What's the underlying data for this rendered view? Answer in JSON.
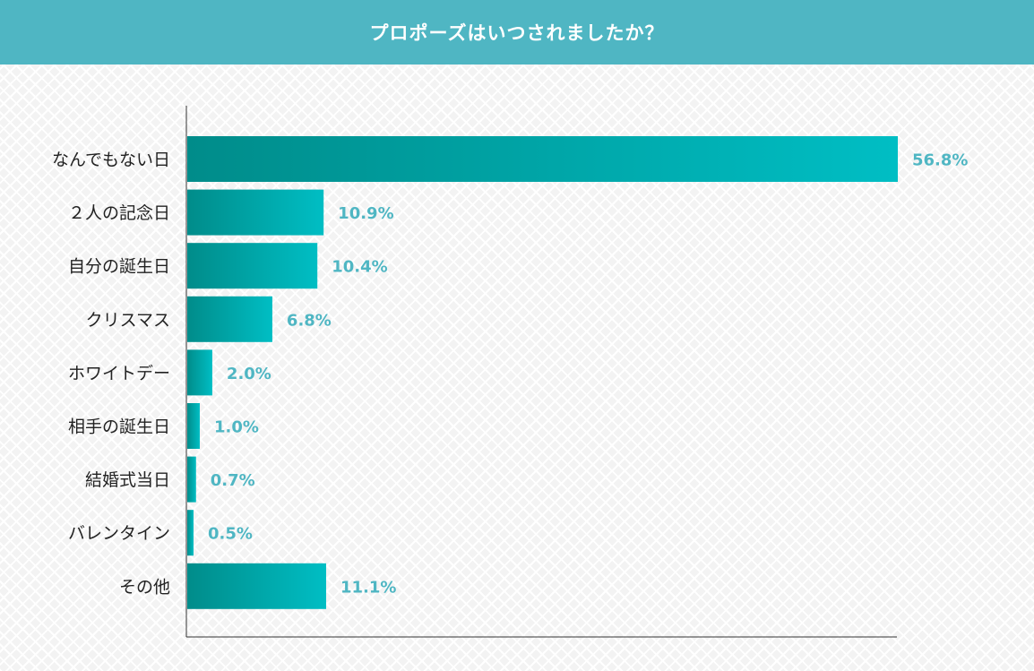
{
  "title": "プロポーズはいつされましたか？",
  "colors": {
    "header": "#4fb6c3",
    "bar_start": "#008c8a",
    "bar_end": "#00bec4",
    "value_label": "#4fb6c3"
  },
  "chart_data": {
    "type": "bar",
    "orientation": "horizontal",
    "title": "プロポーズはいつされましたか？",
    "categories": [
      "なんでもない日",
      "２人の記念日",
      "自分の誕生日",
      "クリスマス",
      "ホワイトデー",
      "相手の誕生日",
      "結婚式当日",
      "バレンタイン",
      "その他"
    ],
    "values": [
      56.8,
      10.9,
      10.4,
      6.8,
      2.0,
      1.0,
      0.7,
      0.5,
      11.1
    ],
    "value_labels": [
      "56.8%",
      "10.9%",
      "10.4%",
      "6.8%",
      "2.0%",
      "1.0%",
      "0.7%",
      "0.5%",
      "11.1%"
    ],
    "unit": "%",
    "xlim": [
      0,
      56.8
    ],
    "grid": false,
    "legend": "none"
  }
}
